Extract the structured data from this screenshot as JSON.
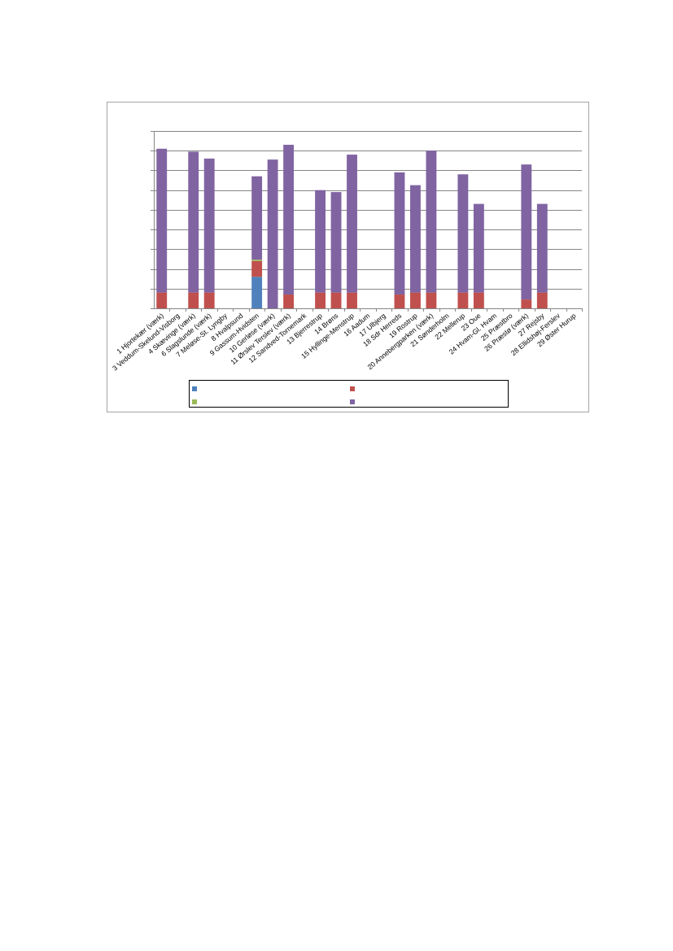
{
  "chart_data": {
    "type": "bar",
    "stacked": true,
    "title": "",
    "xlabel": "",
    "ylabel": "",
    "ylim": [
      0,
      9
    ],
    "y_ticks": [
      0,
      1,
      2,
      3,
      4,
      5,
      6,
      7,
      8,
      9
    ],
    "y_tick_labels_visible": false,
    "grid": true,
    "legend_position": "bottom",
    "categories": [
      "1 Hjortekær (værk)",
      "3 Veddum-Skelund-Visborg",
      "4 Skævinge (værk)",
      "6 Slagslunde (værk)",
      "7 Meløse-St. Lyngby",
      "8 Hvalpsund",
      "9 Gassum-Hvidsten",
      "10 Gerløse (værk)",
      "11 Ørslev Terslev (værk)",
      "12 Sandved-Tornemark",
      "13 Bjerrestrup",
      "14 Brøns",
      "15 Hyllinge-Menstrup",
      "16 Aadum",
      "17 Ulbjerg",
      "18 Sdr Herreds",
      "19 Rostrup",
      "20 Annebergparken (værk)",
      "21 Sønderholm",
      "22 Mellerup",
      "23 Oue",
      "24 Hvam-Gl. Hvam",
      "25 Præstbro",
      "26 Præstø (værk)",
      "27 Rejsby",
      "28 Ellidshøj-Ferslev",
      "29 Øster Hurup"
    ],
    "series": [
      {
        "name": "",
        "color": "#4f81bd",
        "values": [
          0,
          0,
          0,
          0,
          0,
          0,
          1.6,
          0,
          0,
          0,
          0,
          0,
          0,
          0,
          0,
          0,
          0,
          0,
          0,
          0,
          0,
          0,
          0,
          0,
          0,
          0,
          0
        ]
      },
      {
        "name": "",
        "color": "#c0504d",
        "values": [
          0.8,
          0,
          0.8,
          0.8,
          0,
          0,
          0.8,
          0,
          0.7,
          0,
          0.8,
          0.8,
          0.8,
          0,
          0,
          0.7,
          0.8,
          0.8,
          0,
          0.8,
          0.8,
          0,
          0,
          0.45,
          0.8,
          0,
          0
        ]
      },
      {
        "name": "",
        "color": "#9bbb59",
        "values": [
          0,
          0,
          0,
          0,
          0,
          0,
          0.07,
          0,
          0,
          0,
          0,
          0,
          0,
          0,
          0,
          0,
          0,
          0,
          0,
          0,
          0,
          0,
          0,
          0,
          0,
          0,
          0
        ]
      },
      {
        "name": "",
        "color": "#8064a2",
        "values": [
          7.3,
          0,
          7.15,
          6.8,
          0,
          0,
          4.23,
          7.55,
          7.6,
          0,
          5.2,
          5.1,
          7.0,
          0,
          0,
          6.2,
          5.45,
          7.2,
          0,
          6.0,
          4.5,
          0,
          0,
          6.85,
          4.5,
          0,
          0
        ]
      }
    ]
  }
}
